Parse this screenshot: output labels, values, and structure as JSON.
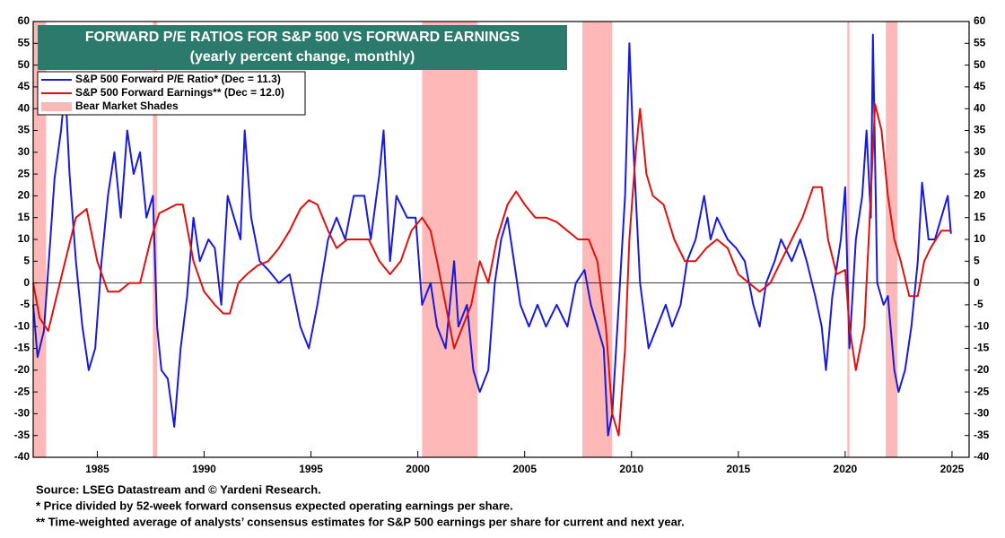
{
  "chart_data": {
    "type": "line",
    "title": [
      "FORWARD P/E RATIOS FOR S&P 500 VS FORWARD EARNINGS",
      "(yearly percent change, monthly)"
    ],
    "xlim": [
      1982,
      2025.8
    ],
    "xticks": [
      1985,
      1990,
      1995,
      2000,
      2005,
      2010,
      2015,
      2020,
      2025
    ],
    "ylim": [
      -40,
      60
    ],
    "yticks": [
      -40,
      -35,
      -30,
      -25,
      -20,
      -15,
      -10,
      -5,
      0,
      5,
      10,
      15,
      20,
      25,
      30,
      35,
      40,
      45,
      50,
      55,
      60
    ],
    "y2lim": [
      -40,
      60
    ],
    "y2ticks": [
      -40,
      -35,
      -30,
      -25,
      -20,
      -15,
      -10,
      -5,
      0,
      5,
      10,
      15,
      20,
      25,
      30,
      35,
      40,
      45,
      50,
      55,
      60
    ],
    "zero_line": true,
    "shades": {
      "name": "Bear Market Shades",
      "color": "#ffb8b8",
      "ranges": [
        [
          1982.0,
          1982.6
        ],
        [
          1987.6,
          1987.8
        ],
        [
          2000.2,
          2002.8
        ],
        [
          2007.7,
          2009.1
        ],
        [
          2020.1,
          2020.2
        ],
        [
          2021.9,
          2022.45
        ]
      ]
    },
    "series": [
      {
        "name": "S&P 500 Forward P/E Ratio* (Dec = 11.3)",
        "color": "#1a1adc",
        "x": [
          1982.0,
          1982.2,
          1982.5,
          1982.8,
          1983.0,
          1983.3,
          1983.5,
          1983.7,
          1984.0,
          1984.3,
          1984.6,
          1984.9,
          1985.2,
          1985.5,
          1985.8,
          1986.1,
          1986.4,
          1986.7,
          1987.0,
          1987.3,
          1987.6,
          1987.8,
          1988.0,
          1988.3,
          1988.6,
          1988.9,
          1989.2,
          1989.5,
          1989.8,
          1990.2,
          1990.5,
          1990.8,
          1991.1,
          1991.4,
          1991.7,
          1991.9,
          1992.2,
          1992.6,
          1993.0,
          1993.5,
          1994.0,
          1994.5,
          1994.9,
          1995.3,
          1995.8,
          1996.2,
          1996.6,
          1997.0,
          1997.5,
          1997.8,
          1998.2,
          1998.4,
          1998.7,
          1999.0,
          1999.5,
          1999.9,
          2000.2,
          2000.6,
          2000.9,
          2001.3,
          2001.7,
          2001.9,
          2002.3,
          2002.6,
          2002.9,
          2003.3,
          2003.6,
          2003.9,
          2004.2,
          2004.5,
          2004.8,
          2005.2,
          2005.6,
          2006.0,
          2006.5,
          2007.0,
          2007.4,
          2007.8,
          2008.1,
          2008.4,
          2008.7,
          2008.9,
          2009.1,
          2009.4,
          2009.7,
          2009.9,
          2010.1,
          2010.4,
          2010.8,
          2011.2,
          2011.6,
          2011.9,
          2012.3,
          2012.6,
          2013.0,
          2013.4,
          2013.7,
          2014.0,
          2014.5,
          2014.9,
          2015.3,
          2015.7,
          2016.0,
          2016.3,
          2016.7,
          2017.0,
          2017.5,
          2017.9,
          2018.2,
          2018.6,
          2018.9,
          2019.1,
          2019.4,
          2019.8,
          2020.0,
          2020.2,
          2020.5,
          2020.8,
          2021.0,
          2021.2,
          2021.3,
          2021.5,
          2021.8,
          2022.0,
          2022.3,
          2022.5,
          2022.8,
          2023.1,
          2023.4,
          2023.6,
          2023.9,
          2024.2,
          2024.5,
          2024.8,
          2024.95
        ],
        "values": [
          -5,
          -17,
          -11,
          10,
          24,
          35,
          45,
          25,
          5,
          -10,
          -20,
          -15,
          5,
          20,
          30,
          15,
          35,
          25,
          30,
          15,
          20,
          -10,
          -20,
          -22,
          -33,
          -15,
          -3,
          15,
          5,
          10,
          8,
          -5,
          20,
          15,
          10,
          35,
          15,
          5,
          3,
          0,
          2,
          -10,
          -15,
          -5,
          10,
          15,
          10,
          20,
          20,
          10,
          25,
          35,
          5,
          20,
          15,
          15,
          -5,
          0,
          -10,
          -15,
          5,
          -10,
          -5,
          -20,
          -25,
          -20,
          0,
          10,
          15,
          5,
          -5,
          -10,
          -5,
          -10,
          -5,
          -10,
          0,
          3,
          -5,
          -10,
          -15,
          -35,
          -30,
          -5,
          20,
          55,
          30,
          0,
          -15,
          -10,
          -5,
          -10,
          -5,
          5,
          10,
          20,
          10,
          15,
          10,
          8,
          5,
          -5,
          -10,
          0,
          5,
          10,
          5,
          10,
          5,
          -3,
          -10,
          -20,
          -3,
          10,
          22,
          -15,
          10,
          20,
          35,
          15,
          57,
          0,
          -5,
          -3,
          -20,
          -25,
          -20,
          -10,
          5,
          23,
          10,
          10,
          15,
          20,
          11.3
        ]
      },
      {
        "name": "S&P 500 Forward Earnings** (Dec = 12.0)",
        "color": "#e01010",
        "x": [
          1982.0,
          1982.3,
          1982.7,
          1983.0,
          1983.5,
          1984.0,
          1984.5,
          1985.0,
          1985.5,
          1986.0,
          1986.5,
          1987.0,
          1987.5,
          1987.9,
          1988.3,
          1988.7,
          1989.0,
          1989.5,
          1990.0,
          1990.5,
          1990.9,
          1991.2,
          1991.6,
          1992.0,
          1992.5,
          1993.0,
          1993.5,
          1994.0,
          1994.5,
          1994.9,
          1995.3,
          1995.8,
          1996.2,
          1996.7,
          1997.2,
          1997.7,
          1998.2,
          1998.7,
          1999.2,
          1999.7,
          2000.2,
          2000.6,
          2000.9,
          2001.3,
          2001.7,
          2002.1,
          2002.5,
          2002.9,
          2003.3,
          2003.7,
          2004.2,
          2004.6,
          2005.0,
          2005.5,
          2006.0,
          2006.5,
          2007.0,
          2007.5,
          2008.0,
          2008.4,
          2008.8,
          2009.1,
          2009.4,
          2009.7,
          2009.9,
          2010.2,
          2010.4,
          2010.7,
          2011.0,
          2011.5,
          2012.0,
          2012.5,
          2013.0,
          2013.5,
          2014.0,
          2014.5,
          2015.0,
          2015.5,
          2016.0,
          2016.5,
          2017.0,
          2017.5,
          2018.0,
          2018.5,
          2018.9,
          2019.2,
          2019.6,
          2020.0,
          2020.2,
          2020.5,
          2020.9,
          2021.1,
          2021.4,
          2021.7,
          2022.0,
          2022.3,
          2022.6,
          2023.0,
          2023.4,
          2023.7,
          2024.0,
          2024.5,
          2024.95
        ],
        "values": [
          0,
          -8,
          -11,
          -5,
          5,
          15,
          17,
          5,
          -2,
          -2,
          0,
          0,
          10,
          16,
          17,
          18,
          18,
          5,
          -2,
          -5,
          -7,
          -7,
          0,
          2,
          4,
          5,
          8,
          12,
          17,
          19,
          18,
          12,
          8,
          10,
          10,
          10,
          5,
          2,
          5,
          12,
          15,
          12,
          5,
          -5,
          -15,
          -10,
          -5,
          5,
          0,
          10,
          18,
          21,
          18,
          15,
          15,
          14,
          12,
          10,
          10,
          5,
          -10,
          -30,
          -35,
          -15,
          10,
          30,
          40,
          25,
          20,
          18,
          10,
          5,
          5,
          8,
          10,
          8,
          2,
          0,
          -2,
          0,
          5,
          10,
          15,
          22,
          22,
          10,
          2,
          3,
          -10,
          -20,
          -10,
          10,
          41,
          35,
          20,
          10,
          5,
          -3,
          -3,
          5,
          8,
          12,
          12
        ]
      }
    ],
    "notes": [
      "Source: LSEG Datastream and © Yardeni Research.",
      "* Price divided by 52-week forward consensus expected operating earnings per share.",
      "** Time-weighted average of analysts’ consensus estimates for S&P 500 earnings per share for current and next year."
    ]
  }
}
